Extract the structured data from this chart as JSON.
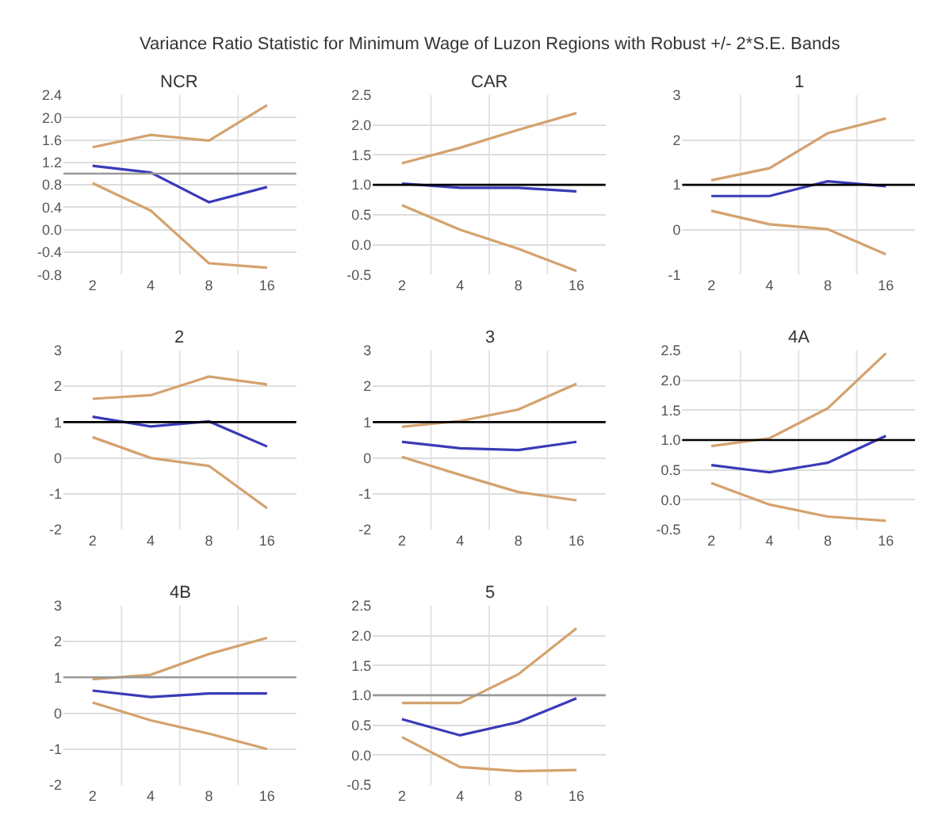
{
  "chart_data": [
    {
      "type": "line",
      "title": "NCR",
      "annotations": [
        "Variance Ratio Statistic for Minimum Wage of Luzon Regions with Robust +/- 2*S.E. Bands"
      ],
      "categories": [
        "2",
        "4",
        "8",
        "16"
      ],
      "series": [
        {
          "color": "#d4a26e",
          "values": [
            1.47,
            1.69,
            1.59,
            2.22
          ]
        },
        {
          "color": "#3a3ab8",
          "values": [
            1.14,
            1.02,
            0.49,
            0.76
          ]
        },
        {
          "color": "#d4a26e",
          "values": [
            0.83,
            0.34,
            -0.6,
            -0.68
          ]
        }
      ],
      "ylim": [
        -0.8,
        2.4
      ],
      "yticks": [
        -0.8,
        -0.4,
        {
          "value": 0,
          "label": "0.0"
        },
        0.4,
        0.8,
        1.2,
        1.6,
        {
          "value": 2,
          "label": "2.0"
        },
        2.4
      ],
      "ref_lines": [
        {
          "axis": "y",
          "value": 1,
          "color": "#999999"
        }
      ],
      "grid": true
    },
    {
      "type": "line",
      "title": "CAR",
      "categories": [
        "2",
        "4",
        "8",
        "16"
      ],
      "series": [
        {
          "color": "#d4a26e",
          "values": [
            1.36,
            1.62,
            1.92,
            2.2
          ]
        },
        {
          "color": "#3a3ab8",
          "values": [
            1.02,
            0.95,
            0.95,
            0.89
          ]
        },
        {
          "color": "#d4a26e",
          "values": [
            0.66,
            0.25,
            -0.07,
            -0.44
          ]
        }
      ],
      "ylim": [
        -0.5,
        2.5
      ],
      "yticks": [
        -0.5,
        {
          "value": 0,
          "label": "0.0"
        },
        0.5,
        {
          "value": 1,
          "label": "1.0"
        },
        1.5,
        {
          "value": 2,
          "label": "2.0"
        },
        2.5
      ],
      "ref_lines": [
        {
          "axis": "y",
          "value": 1,
          "color": "#000000"
        }
      ],
      "grid": true
    },
    {
      "type": "line",
      "title": "1",
      "categories": [
        "2",
        "4",
        "8",
        "16"
      ],
      "series": [
        {
          "color": "#d4a26e",
          "values": [
            1.1,
            1.37,
            2.15,
            2.48
          ]
        },
        {
          "color": "#3a3ab8",
          "values": [
            0.75,
            0.75,
            1.08,
            0.97
          ]
        },
        {
          "color": "#d4a26e",
          "values": [
            0.42,
            0.12,
            0.01,
            -0.55
          ]
        }
      ],
      "ylim": [
        -1,
        3
      ],
      "yticks": [
        -1,
        0,
        1,
        2,
        3
      ],
      "ref_lines": [
        {
          "axis": "y",
          "value": 1,
          "color": "#000000"
        }
      ],
      "grid": true
    },
    {
      "type": "line",
      "title": "2",
      "categories": [
        "2",
        "4",
        "8",
        "16"
      ],
      "series": [
        {
          "color": "#d4a26e",
          "values": [
            1.65,
            1.75,
            2.27,
            2.05
          ]
        },
        {
          "color": "#3a3ab8",
          "values": [
            1.15,
            0.88,
            1.02,
            0.32
          ]
        },
        {
          "color": "#d4a26e",
          "values": [
            0.58,
            0.0,
            -0.22,
            -1.4
          ]
        }
      ],
      "ylim": [
        -2,
        3
      ],
      "yticks": [
        -2,
        -1,
        0,
        1,
        2,
        3
      ],
      "ref_lines": [
        {
          "axis": "y",
          "value": 1,
          "color": "#000000"
        }
      ],
      "grid": true
    },
    {
      "type": "line",
      "title": "3",
      "categories": [
        "2",
        "4",
        "8",
        "16"
      ],
      "series": [
        {
          "color": "#d4a26e",
          "values": [
            0.87,
            1.03,
            1.35,
            2.07
          ]
        },
        {
          "color": "#3a3ab8",
          "values": [
            0.45,
            0.27,
            0.22,
            0.45
          ]
        },
        {
          "color": "#d4a26e",
          "values": [
            0.03,
            -0.47,
            -0.95,
            -1.18
          ]
        }
      ],
      "ylim": [
        -2,
        3
      ],
      "yticks": [
        -2,
        -1,
        0,
        1,
        2,
        3
      ],
      "ref_lines": [
        {
          "axis": "y",
          "value": 1,
          "color": "#000000"
        }
      ],
      "grid": true
    },
    {
      "type": "line",
      "title": "4A",
      "categories": [
        "2",
        "4",
        "8",
        "16"
      ],
      "series": [
        {
          "color": "#d4a26e",
          "values": [
            0.9,
            1.03,
            1.53,
            2.45
          ]
        },
        {
          "color": "#3a3ab8",
          "values": [
            0.58,
            0.46,
            0.62,
            1.07
          ]
        },
        {
          "color": "#d4a26e",
          "values": [
            0.28,
            -0.08,
            -0.28,
            -0.35
          ]
        }
      ],
      "ylim": [
        -0.5,
        2.5
      ],
      "yticks": [
        -0.5,
        {
          "value": 0,
          "label": "0.0"
        },
        0.5,
        {
          "value": 1,
          "label": "1.0"
        },
        1.5,
        {
          "value": 2,
          "label": "2.0"
        },
        2.5
      ],
      "ref_lines": [
        {
          "axis": "y",
          "value": 1,
          "color": "#000000"
        }
      ],
      "grid": true
    },
    {
      "type": "line",
      "title": "4B",
      "categories": [
        "2",
        "4",
        "8",
        "16"
      ],
      "series": [
        {
          "color": "#d4a26e",
          "values": [
            0.95,
            1.07,
            1.65,
            2.1
          ]
        },
        {
          "color": "#3a3ab8",
          "values": [
            0.63,
            0.45,
            0.55,
            0.55
          ]
        },
        {
          "color": "#d4a26e",
          "values": [
            0.3,
            -0.2,
            -0.57,
            -1.0
          ]
        }
      ],
      "ylim": [
        -2,
        3
      ],
      "yticks": [
        -2,
        -1,
        0,
        1,
        2,
        3
      ],
      "ref_lines": [
        {
          "axis": "y",
          "value": 1,
          "color": "#999999"
        }
      ],
      "grid": true
    },
    {
      "type": "line",
      "title": "5",
      "categories": [
        "2",
        "4",
        "8",
        "16"
      ],
      "series": [
        {
          "color": "#d4a26e",
          "values": [
            0.87,
            0.87,
            1.35,
            2.12
          ]
        },
        {
          "color": "#3a3ab8",
          "values": [
            0.6,
            0.33,
            0.55,
            0.95
          ]
        },
        {
          "color": "#d4a26e",
          "values": [
            0.3,
            -0.2,
            -0.27,
            -0.25
          ]
        }
      ],
      "ylim": [
        -0.5,
        2.5
      ],
      "yticks": [
        -0.5,
        {
          "value": 0,
          "label": "0.0"
        },
        0.5,
        {
          "value": 1,
          "label": "1.0"
        },
        1.5,
        {
          "value": 2,
          "label": "2.0"
        },
        2.5
      ],
      "ref_lines": [
        {
          "axis": "y",
          "value": 1,
          "color": "#999999"
        }
      ],
      "grid": true
    }
  ]
}
